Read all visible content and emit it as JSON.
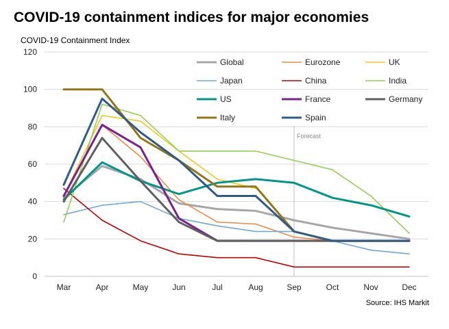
{
  "header": {
    "title": "COVID-19 containment indices for major economies",
    "subtitle": "COVID-19 Containment  Index",
    "source": "Source: IHS Markit"
  },
  "chart_data": {
    "type": "line",
    "ylabel": "COVID-19 Containment  Index",
    "ylim": [
      0,
      120
    ],
    "yticks": [
      0,
      20,
      40,
      60,
      80,
      100,
      120
    ],
    "grid": true,
    "legend_position": "top-right",
    "categories": [
      "Mar",
      "Apr",
      "May",
      "Jun",
      "Jul",
      "Aug",
      "Sep",
      "Oct",
      "Nov",
      "Dec"
    ],
    "annotation": {
      "label": "Forecast",
      "at": "Sep"
    },
    "series": [
      {
        "name": "Global",
        "color": "#a6a6a6",
        "width": 3,
        "values": [
          42,
          59,
          52,
          39,
          36,
          35,
          30,
          26,
          23,
          20
        ]
      },
      {
        "name": "Eurozone",
        "color": "#f08a45",
        "width": 1.6,
        "values": [
          43,
          81,
          64,
          41,
          29,
          28,
          21,
          19,
          19,
          19
        ]
      },
      {
        "name": "UK",
        "color": "#f5c518",
        "width": 1.6,
        "values": [
          43,
          86,
          83,
          67,
          52,
          47,
          null,
          null,
          null,
          null
        ]
      },
      {
        "name": "Japan",
        "color": "#6ea8d8",
        "width": 1.6,
        "values": [
          33,
          38,
          40,
          31,
          27,
          24,
          24,
          19,
          14,
          12
        ]
      },
      {
        "name": "China",
        "color": "#c00000",
        "width": 1.6,
        "values": [
          47,
          30,
          19,
          12,
          10,
          10,
          5,
          5,
          5,
          5
        ]
      },
      {
        "name": "India",
        "color": "#92d050",
        "width": 1.6,
        "values": [
          29,
          92,
          86,
          67,
          67,
          67,
          62,
          57,
          43,
          23
        ]
      },
      {
        "name": "US",
        "color": "#009688",
        "width": 3,
        "values": [
          41,
          61,
          51,
          44,
          50,
          52,
          50,
          42,
          38,
          32
        ]
      },
      {
        "name": "France",
        "color": "#7b2092",
        "width": 3,
        "values": [
          43,
          81,
          69,
          31,
          19,
          19,
          19,
          19,
          19,
          19
        ]
      },
      {
        "name": "Germany",
        "color": "#5f5f5f",
        "width": 3,
        "values": [
          40,
          74,
          51,
          29,
          19,
          19,
          19,
          19,
          19,
          19
        ]
      },
      {
        "name": "Italy",
        "color": "#957514",
        "width": 3,
        "values": [
          100,
          100,
          74,
          62,
          48,
          48,
          24,
          19,
          19,
          19
        ]
      },
      {
        "name": "Spain",
        "color": "#2e5b8a",
        "width": 3,
        "values": [
          49,
          95,
          77,
          62,
          43,
          43,
          24,
          19,
          19,
          19
        ]
      }
    ]
  }
}
